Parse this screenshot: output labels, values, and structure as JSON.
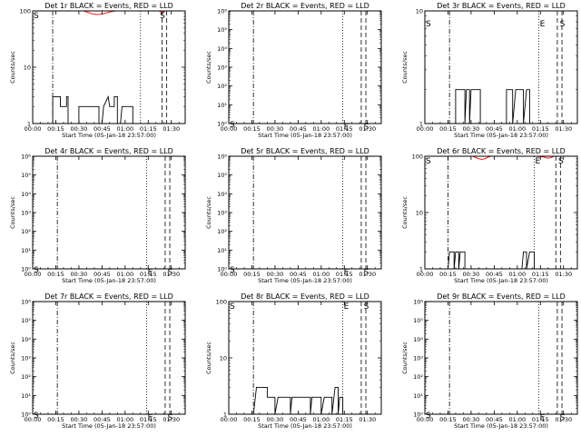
{
  "figure": {
    "background": "#ffffff"
  },
  "chart_data": [
    {
      "type": "line",
      "title": "Det 1r BLACK = Events, RED = LLD",
      "xlabel": "Start Time (05-Jan-18 23:57:00)",
      "ylabel": "Counts/sec",
      "xlim": [
        "00:00",
        "01:39"
      ],
      "x_ticks": [
        "00:00",
        "00:15",
        "00:30",
        "00:45",
        "01:00",
        "01:15",
        "01:30"
      ],
      "y_scale": "log",
      "ylim": [
        1,
        100
      ],
      "y_ticks": [
        "1",
        "10",
        "100"
      ],
      "lines": [
        {
          "style": "dash-dot",
          "x": "00:13"
        },
        {
          "style": "dotted",
          "x": "01:10"
        },
        {
          "style": "dashed",
          "x": "01:24"
        },
        {
          "style": "dashed",
          "x": "01:27"
        }
      ],
      "markers": [
        {
          "label": "S",
          "x": "00:00",
          "y": 100
        },
        {
          "label": "S",
          "x": "01:22",
          "y": 100
        }
      ],
      "series": [
        {
          "color": "#000000",
          "values": [
            [
              13,
              1
            ],
            [
              13,
              3
            ],
            [
              18,
              3
            ],
            [
              18,
              2
            ],
            [
              22,
              2
            ],
            [
              22,
              3
            ],
            [
              23,
              3
            ],
            [
              23,
              1
            ],
            [
              30,
              1
            ],
            [
              30,
              2
            ],
            [
              43,
              2
            ],
            [
              43,
              1
            ],
            [
              45,
              1
            ],
            [
              46,
              2
            ],
            [
              49,
              3
            ],
            [
              50,
              2
            ],
            [
              53,
              2
            ],
            [
              53,
              3
            ],
            [
              55,
              3
            ],
            [
              55,
              1
            ],
            [
              57,
              1
            ],
            [
              58,
              2
            ],
            [
              65,
              2
            ],
            [
              65,
              1
            ]
          ]
        },
        {
          "color": "#ff0000",
          "values": [
            [
              33,
              100
            ],
            [
              36,
              94
            ],
            [
              39,
              88
            ],
            [
              42,
              86
            ],
            [
              45,
              88
            ],
            [
              48,
              92
            ],
            [
              51,
              97
            ],
            [
              54,
              100
            ]
          ]
        },
        {
          "color": "#ff0000",
          "values": [
            [
              82,
              100
            ],
            [
              84,
              92
            ],
            [
              86,
              100
            ]
          ]
        }
      ]
    },
    {
      "type": "line",
      "title": "Det 2r BLACK = Events, RED = LLD",
      "xlabel": "Start Time (05-Jan-18 23:57:00)",
      "ylabel": "Counts/sec",
      "xlim": [
        "00:00",
        "01:39"
      ],
      "x_ticks": [
        "00:00",
        "00:15",
        "00:30",
        "00:45",
        "01:00",
        "01:15",
        "01:30"
      ],
      "y_scale": "log",
      "ylim": [
        1,
        1000000
      ],
      "y_ticks": [
        "10⁰",
        "10¹",
        "10²",
        "10³",
        "10⁴",
        "10⁵",
        "10⁶"
      ],
      "lines": [
        {
          "style": "dash-dot",
          "x": "00:16"
        },
        {
          "style": "dotted",
          "x": "01:14"
        },
        {
          "style": "dashed",
          "x": "01:26"
        },
        {
          "style": "dashed",
          "x": "01:29"
        }
      ],
      "markers": [
        {
          "label": "S",
          "x": "00:00",
          "y": 1.6
        },
        {
          "label": "E",
          "x": "01:14",
          "y": 1.2
        },
        {
          "label": "S",
          "x": "01:27",
          "y": 1.2
        }
      ],
      "series": []
    },
    {
      "type": "line",
      "title": "Det 3r BLACK = Events, RED = LLD",
      "xlabel": "Start Time (05-Jan-18 23:57:00)",
      "ylabel": "Counts/sec",
      "xlim": [
        "00:00",
        "01:39"
      ],
      "x_ticks": [
        "00:00",
        "00:15",
        "00:30",
        "00:45",
        "01:00",
        "01:15",
        "01:30"
      ],
      "y_scale": "log",
      "ylim": [
        1,
        10
      ],
      "y_ticks": [
        "1",
        "10"
      ],
      "lines": [
        {
          "style": "dash-dot",
          "x": "00:16"
        },
        {
          "style": "dotted",
          "x": "01:14"
        },
        {
          "style": "dashed",
          "x": "01:26"
        },
        {
          "style": "dashed",
          "x": "01:29"
        }
      ],
      "markers": [
        {
          "label": "S",
          "x": "00:00",
          "y": 8.5
        },
        {
          "label": "E",
          "x": "01:14",
          "y": 8.5
        },
        {
          "label": "S",
          "x": "01:27",
          "y": 8.5
        }
      ],
      "series": [
        {
          "color": "#000000",
          "values": [
            [
              20,
              1
            ],
            [
              20,
              2
            ],
            [
              26,
              2
            ],
            [
              26,
              1
            ],
            [
              27,
              2
            ],
            [
              29,
              2
            ],
            [
              29,
              1
            ],
            [
              30,
              2
            ],
            [
              36,
              2
            ],
            [
              36,
              1
            ],
            [
              53,
              1
            ],
            [
              53,
              2
            ],
            [
              57,
              2
            ],
            [
              57,
              1
            ],
            [
              59,
              2
            ],
            [
              64,
              2
            ],
            [
              64,
              1
            ],
            [
              66,
              2
            ],
            [
              68,
              2
            ],
            [
              68,
              1
            ]
          ]
        }
      ]
    },
    {
      "type": "line",
      "title": "Det 4r BLACK = Events, RED = LLD",
      "xlabel": "Start Time (05-Jan-18 23:57:00)",
      "ylabel": "Counts/sec",
      "xlim": [
        "00:00",
        "01:39"
      ],
      "x_ticks": [
        "00:00",
        "00:15",
        "00:30",
        "00:45",
        "01:00",
        "01:15",
        "01:30"
      ],
      "y_scale": "log",
      "ylim": [
        1,
        1000000
      ],
      "y_ticks": [
        "10⁰",
        "10¹",
        "10²",
        "10³",
        "10⁴",
        "10⁵",
        "10⁶"
      ],
      "lines": [
        {
          "style": "dash-dot",
          "x": "00:16"
        },
        {
          "style": "dotted",
          "x": "01:14"
        },
        {
          "style": "dashed",
          "x": "01:26"
        },
        {
          "style": "dashed",
          "x": "01:29"
        }
      ],
      "markers": [
        {
          "label": "S",
          "x": "00:00",
          "y": 1.6
        },
        {
          "label": "E",
          "x": "01:14",
          "y": 1.2
        },
        {
          "label": "S",
          "x": "01:27",
          "y": 1.2
        }
      ],
      "series": []
    },
    {
      "type": "line",
      "title": "Det 5r BLACK = Events, RED = LLD",
      "xlabel": "Start Time (05-Jan-18 23:57:00)",
      "ylabel": "Counts/sec",
      "xlim": [
        "00:00",
        "01:39"
      ],
      "x_ticks": [
        "00:00",
        "00:15",
        "00:30",
        "00:45",
        "01:00",
        "01:15",
        "01:30"
      ],
      "y_scale": "log",
      "ylim": [
        1,
        1000000
      ],
      "y_ticks": [
        "10⁰",
        "10¹",
        "10²",
        "10³",
        "10⁴",
        "10⁵",
        "10⁶"
      ],
      "lines": [
        {
          "style": "dash-dot",
          "x": "00:16"
        },
        {
          "style": "dotted",
          "x": "01:14"
        },
        {
          "style": "dashed",
          "x": "01:26"
        },
        {
          "style": "dashed",
          "x": "01:29"
        }
      ],
      "markers": [
        {
          "label": "S",
          "x": "00:00",
          "y": 1.6
        },
        {
          "label": "E",
          "x": "01:14",
          "y": 1.2
        },
        {
          "label": "S",
          "x": "01:27",
          "y": 1.2
        }
      ],
      "series": []
    },
    {
      "type": "line",
      "title": "Det 6r BLACK = Events, RED = LLD",
      "xlabel": "Start Time (05-Jan-18 23:57:00)",
      "ylabel": "Counts/sec",
      "xlim": [
        "00:00",
        "01:39"
      ],
      "x_ticks": [
        "00:00",
        "00:15",
        "00:30",
        "00:45",
        "01:00",
        "01:15",
        "01:30"
      ],
      "y_scale": "log",
      "ylim": [
        1,
        100
      ],
      "y_ticks": [
        "1",
        "10",
        "100"
      ],
      "lines": [
        {
          "style": "dash-dot",
          "x": "00:15"
        },
        {
          "style": "dotted",
          "x": "01:11"
        },
        {
          "style": "dashed",
          "x": "01:25"
        },
        {
          "style": "dashed",
          "x": "01:28"
        }
      ],
      "markers": [
        {
          "label": "S",
          "x": "00:00",
          "y": 100
        },
        {
          "label": "E",
          "x": "01:11",
          "y": 100
        },
        {
          "label": "S",
          "x": "01:26",
          "y": 100
        }
      ],
      "series": [
        {
          "color": "#000000",
          "values": [
            [
              15,
              1
            ],
            [
              16,
              2
            ],
            [
              19,
              2
            ],
            [
              19,
              1
            ],
            [
              20,
              2
            ],
            [
              22,
              2
            ],
            [
              22,
              1
            ],
            [
              23,
              2
            ],
            [
              26,
              2
            ],
            [
              26,
              1
            ],
            [
              63,
              1
            ],
            [
              64,
              2
            ],
            [
              66,
              2
            ],
            [
              66,
              1
            ],
            [
              68,
              2
            ],
            [
              71,
              2
            ],
            [
              71,
              1
            ]
          ]
        },
        {
          "color": "#ff0000",
          "values": [
            [
              31,
              100
            ],
            [
              33,
              95
            ],
            [
              35,
              90
            ],
            [
              37,
              88
            ],
            [
              39,
              90
            ],
            [
              41,
              96
            ],
            [
              43,
              100
            ]
          ]
        },
        {
          "color": "#ff0000",
          "values": [
            [
              73,
              100
            ],
            [
              77,
              97
            ],
            [
              80,
              92
            ],
            [
              82,
              95
            ],
            [
              84,
              100
            ]
          ]
        }
      ]
    },
    {
      "type": "line",
      "title": "Det 7r BLACK = Events, RED = LLD",
      "xlabel": "Start Time (05-Jan-18 23:57:00)",
      "ylabel": "Counts/sec",
      "xlim": [
        "00:00",
        "01:39"
      ],
      "x_ticks": [
        "00:00",
        "00:15",
        "00:30",
        "00:45",
        "01:00",
        "01:15",
        "01:30"
      ],
      "y_scale": "log",
      "ylim": [
        1,
        1000000
      ],
      "y_ticks": [
        "10⁰",
        "10¹",
        "10²",
        "10³",
        "10⁴",
        "10⁵",
        "10⁶"
      ],
      "lines": [
        {
          "style": "dash-dot",
          "x": "00:16"
        },
        {
          "style": "dotted",
          "x": "01:14"
        },
        {
          "style": "dashed",
          "x": "01:26"
        },
        {
          "style": "dashed",
          "x": "01:29"
        }
      ],
      "markers": [
        {
          "label": "S",
          "x": "00:00",
          "y": 1.6
        },
        {
          "label": "E",
          "x": "01:14",
          "y": 1.2
        },
        {
          "label": "S",
          "x": "01:27",
          "y": 1.2
        }
      ],
      "series": []
    },
    {
      "type": "line",
      "title": "Det 8r BLACK = Events, RED = LLD",
      "xlabel": "Start Time (05-Jan-18 23:57:00)",
      "ylabel": "Counts/sec",
      "xlim": [
        "00:00",
        "01:39"
      ],
      "x_ticks": [
        "00:00",
        "00:15",
        "00:30",
        "00:45",
        "01:00",
        "01:15",
        "01:30"
      ],
      "y_scale": "log",
      "ylim": [
        1,
        100
      ],
      "y_ticks": [
        "1",
        "10",
        "100"
      ],
      "lines": [
        {
          "style": "dash-dot",
          "x": "00:16"
        },
        {
          "style": "dotted",
          "x": "01:14"
        },
        {
          "style": "dashed",
          "x": "01:26"
        },
        {
          "style": "dashed",
          "x": "01:29"
        }
      ],
      "markers": [
        {
          "label": "S",
          "x": "00:00",
          "y": 100
        },
        {
          "label": "E",
          "x": "01:14",
          "y": 100
        },
        {
          "label": "S",
          "x": "01:27",
          "y": 100
        }
      ],
      "series": [
        {
          "color": "#000000",
          "values": [
            [
              16,
              1
            ],
            [
              18,
              3
            ],
            [
              25,
              3
            ],
            [
              25,
              2
            ],
            [
              30,
              2
            ],
            [
              30,
              1
            ],
            [
              32,
              2
            ],
            [
              40,
              2
            ],
            [
              40,
              1
            ],
            [
              41,
              2
            ],
            [
              53,
              2
            ],
            [
              53,
              1
            ],
            [
              54,
              2
            ],
            [
              60,
              2
            ],
            [
              60,
              1
            ],
            [
              62,
              2
            ],
            [
              67,
              2
            ],
            [
              67,
              1
            ],
            [
              69,
              3
            ],
            [
              71,
              3
            ],
            [
              71,
              1
            ],
            [
              72,
              2
            ],
            [
              74,
              2
            ],
            [
              74,
              1
            ]
          ]
        }
      ]
    },
    {
      "type": "line",
      "title": "Det 9r BLACK = Events, RED = LLD",
      "xlabel": "Start Time (05-Jan-18 23:57:00)",
      "ylabel": "Counts/sec",
      "xlim": [
        "00:00",
        "01:39"
      ],
      "x_ticks": [
        "00:00",
        "00:15",
        "00:30",
        "00:45",
        "01:00",
        "01:15",
        "01:30"
      ],
      "y_scale": "log",
      "ylim": [
        1,
        1000000
      ],
      "y_ticks": [
        "10⁰",
        "10¹",
        "10²",
        "10³",
        "10⁴",
        "10⁵",
        "10⁶"
      ],
      "lines": [
        {
          "style": "dash-dot",
          "x": "00:16"
        },
        {
          "style": "dotted",
          "x": "01:14"
        },
        {
          "style": "dashed",
          "x": "01:26"
        },
        {
          "style": "dashed",
          "x": "01:29"
        }
      ],
      "markers": [
        {
          "label": "S",
          "x": "00:00",
          "y": 1.6
        },
        {
          "label": "E",
          "x": "01:14",
          "y": 1.2
        },
        {
          "label": "S",
          "x": "01:27",
          "y": 1.2
        }
      ],
      "series": []
    }
  ]
}
